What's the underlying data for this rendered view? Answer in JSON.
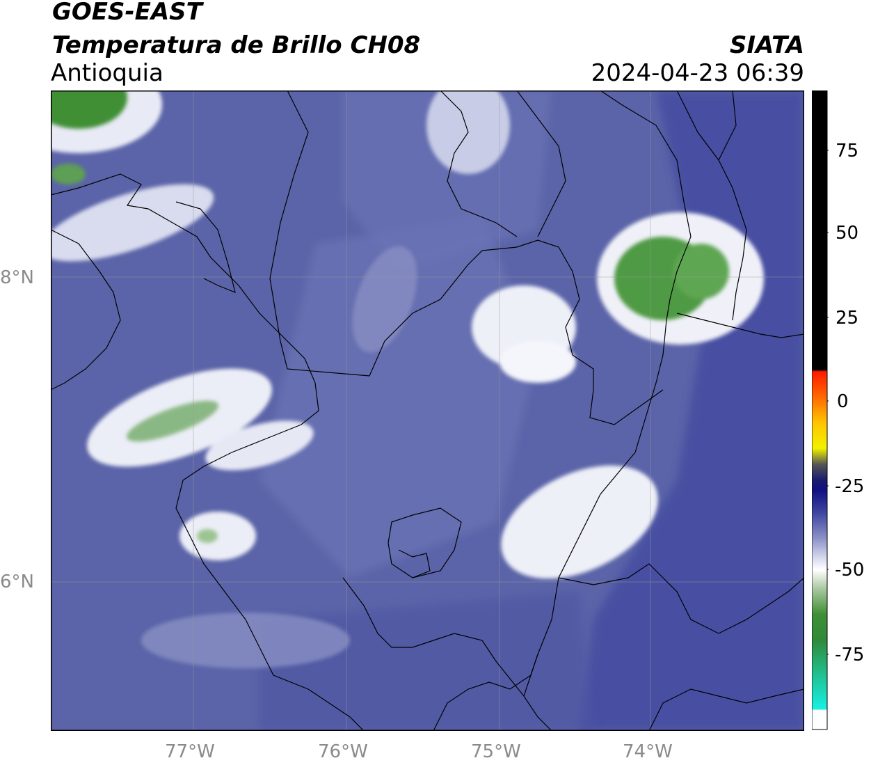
{
  "header": {
    "satellite": "GOES-EAST",
    "product": "Temperatura de Brillo CH08",
    "region": "Antioquia",
    "agency": "SIATA",
    "timestamp": "2024-04-23 06:39"
  },
  "map": {
    "lon_range": [
      -77.95,
      -73.03
    ],
    "lat_range": [
      5.05,
      9.25
    ],
    "lon_ticks": [
      {
        "value": -77,
        "label": "77°W"
      },
      {
        "value": -76,
        "label": "76°W"
      },
      {
        "value": -75,
        "label": "75°W"
      },
      {
        "value": -74,
        "label": "74°W"
      }
    ],
    "lat_ticks": [
      {
        "value": 8,
        "label": "8°N"
      },
      {
        "value": 6,
        "label": "6°N"
      }
    ],
    "gridlines": true
  },
  "colorbar": {
    "range": [
      -95,
      92
    ],
    "ticks": [
      {
        "value": 75,
        "label": "75"
      },
      {
        "value": 50,
        "label": "50"
      },
      {
        "value": 25,
        "label": "25"
      },
      {
        "value": 0,
        "label": "0"
      },
      {
        "value": -25,
        "label": "-25"
      },
      {
        "value": -50,
        "label": "-50"
      },
      {
        "value": -75,
        "label": "-75"
      }
    ],
    "colors": {
      "background": "#5a63a8",
      "cold_cloud": "#3f8f35",
      "cirrus": "#ffffff",
      "warm": "#000000",
      "hot": "#ff1a00",
      "cyan": "#19e6d8"
    }
  }
}
